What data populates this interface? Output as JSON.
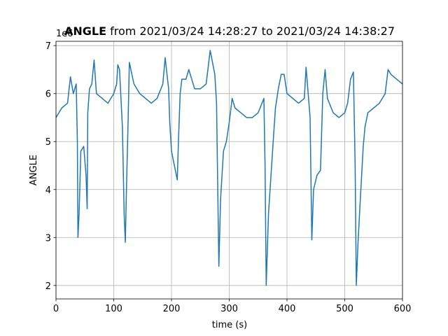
{
  "chart_data": {
    "type": "line",
    "title_bold": "ANGLE",
    "title": "from 2021/03/24 14:28:27 to 2021/03/24 14:38:27",
    "x_label": "time (s)",
    "y_label": "ANGLE",
    "y_offset_label": "1e6",
    "xlim": [
      0,
      600
    ],
    "xticks": [
      0,
      100,
      200,
      300,
      400,
      500,
      600
    ],
    "ylim": [
      1.72,
      7.09
    ],
    "yticks": [
      2,
      3,
      4,
      5,
      6,
      7
    ],
    "grid": true,
    "series": [
      {
        "name": "ANGLE",
        "color": "#1f77b4",
        "x": [
          0,
          5,
          10,
          15,
          20,
          25,
          30,
          35,
          37,
          38,
          40,
          43,
          48,
          52,
          54,
          55,
          58,
          62,
          66,
          70,
          80,
          90,
          100,
          105,
          107,
          110,
          115,
          118,
          120,
          122,
          125,
          127,
          135,
          145,
          155,
          165,
          175,
          185,
          189,
          195,
          197,
          200,
          205,
          210,
          212,
          215,
          218,
          225,
          230,
          240,
          250,
          260,
          267,
          275,
          278,
          282,
          285,
          290,
          295,
          300,
          305,
          310,
          320,
          330,
          340,
          350,
          360,
          362,
          364,
          368,
          375,
          380,
          385,
          390,
          395,
          400,
          410,
          420,
          430,
          433,
          440,
          443,
          446,
          452,
          458,
          462,
          466,
          470,
          480,
          490,
          500,
          505,
          510,
          515,
          518,
          520,
          523,
          527,
          532,
          535,
          540,
          550,
          560,
          570,
          575,
          580,
          590,
          600
        ],
        "values": [
          5.5,
          5.6,
          5.7,
          5.75,
          5.8,
          6.35,
          6.0,
          6.2,
          5.0,
          3.0,
          3.5,
          4.8,
          4.9,
          4.3,
          3.6,
          5.6,
          6.1,
          6.2,
          6.7,
          6.0,
          5.9,
          5.8,
          6.0,
          6.2,
          6.6,
          6.5,
          5.3,
          3.5,
          2.9,
          4.0,
          5.5,
          6.65,
          6.2,
          6.0,
          5.9,
          5.8,
          5.9,
          6.2,
          6.75,
          6.1,
          5.4,
          4.8,
          4.5,
          4.2,
          5.0,
          6.0,
          6.3,
          6.3,
          6.5,
          6.1,
          6.1,
          6.2,
          6.9,
          6.4,
          5.8,
          2.4,
          3.8,
          4.8,
          5.0,
          5.4,
          5.9,
          5.7,
          5.6,
          5.5,
          5.5,
          5.6,
          5.9,
          4.5,
          2.0,
          3.5,
          4.8,
          5.7,
          6.1,
          6.4,
          6.4,
          6.0,
          5.9,
          5.8,
          5.9,
          6.55,
          5.5,
          2.95,
          4.0,
          4.3,
          4.4,
          6.0,
          6.5,
          5.9,
          5.6,
          5.5,
          5.6,
          5.8,
          6.3,
          6.45,
          4.5,
          2.0,
          2.9,
          3.8,
          4.9,
          5.3,
          5.6,
          5.7,
          5.8,
          6.0,
          6.5,
          6.4,
          6.3,
          6.2
        ]
      }
    ]
  }
}
